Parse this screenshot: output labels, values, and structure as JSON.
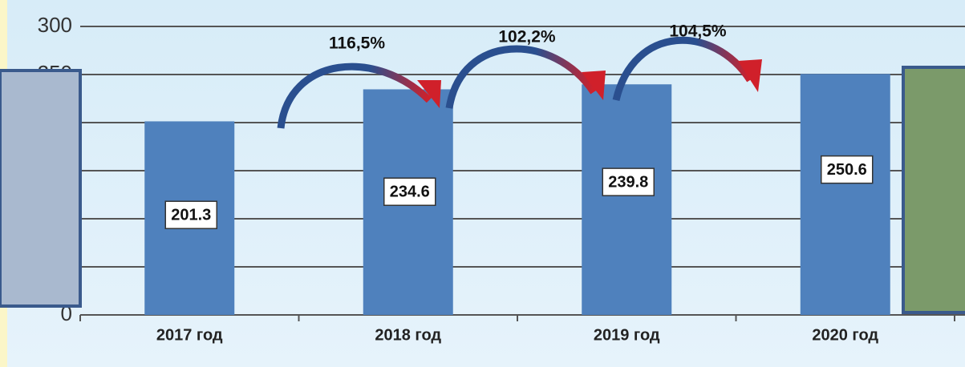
{
  "chart_data": {
    "type": "bar",
    "categories": [
      "2017 год",
      "2018 год",
      "2019 год",
      "2020 год"
    ],
    "values": [
      201.3,
      234.6,
      239.8,
      250.6
    ],
    "color": "#4f81bd",
    "ylim": [
      0,
      300
    ],
    "yticks": [
      0,
      50,
      100,
      150,
      200,
      250,
      300
    ],
    "grid": true,
    "annotations": [
      "116,5%",
      "102,2%",
      "104,5%"
    ]
  }
}
